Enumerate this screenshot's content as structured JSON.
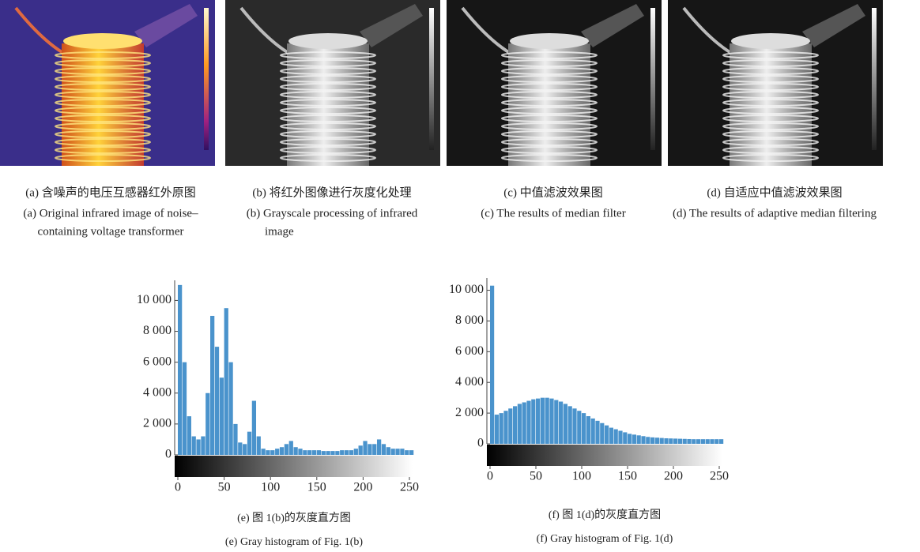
{
  "panels": [
    {
      "caption_cn": "(a) 含噪声的电压互感器红外原图",
      "caption_en": [
        "(a) Original infrared image of noise–",
        "containing voltage transformer"
      ]
    },
    {
      "caption_cn": "(b) 将红外图像进行灰度化处理",
      "caption_en": [
        "(b) Grayscale processing of infrared",
        "image"
      ]
    },
    {
      "caption_cn": "(c) 中值滤波效果图",
      "caption_en": [
        "(c) The results of median filter"
      ]
    },
    {
      "caption_cn": "(d) 自适应中值滤波效果图",
      "caption_en": [
        "(d) The results of adaptive median filtering"
      ]
    }
  ],
  "chart_data": [
    {
      "type": "histogram",
      "title": "(e) 图 1(b)的灰度直方图",
      "subtitle": "(e) Gray histogram of Fig. 1(b)",
      "color": "#4a93cc",
      "bins": [
        0,
        5,
        10,
        15,
        20,
        25,
        30,
        35,
        40,
        45,
        50,
        55,
        60,
        65,
        70,
        75,
        80,
        85,
        90,
        95,
        100,
        105,
        110,
        115,
        120,
        125,
        130,
        135,
        140,
        145,
        150,
        155,
        160,
        165,
        170,
        175,
        180,
        185,
        190,
        195,
        200,
        205,
        210,
        215,
        220,
        225,
        230,
        235,
        240,
        245,
        250,
        255
      ],
      "counts": [
        11000,
        6000,
        2500,
        1200,
        1000,
        1200,
        4000,
        9000,
        7000,
        5000,
        9500,
        6000,
        2000,
        800,
        700,
        1500,
        3500,
        1200,
        400,
        300,
        300,
        400,
        500,
        700,
        900,
        500,
        400,
        300,
        300,
        300,
        300,
        250,
        250,
        250,
        250,
        300,
        300,
        300,
        400,
        600,
        900,
        700,
        700,
        1000,
        700,
        500,
        400,
        400,
        400,
        300,
        300
      ],
      "xlim": [
        0,
        255
      ],
      "xticks": [
        0,
        50,
        100,
        150,
        200,
        250
      ],
      "ylim": [
        0,
        11300
      ],
      "yticks": [
        0,
        {
          "value": 2000,
          "label": "2 000"
        },
        {
          "value": 4000,
          "label": "4 000"
        },
        {
          "value": 6000,
          "label": "6 000"
        },
        {
          "value": 8000,
          "label": "8 000"
        },
        {
          "value": 10000,
          "label": "10 000"
        }
      ]
    },
    {
      "type": "histogram",
      "title": "(f) 图 1(d)的灰度直方图",
      "subtitle": "(f) Gray histogram of Fig. 1(d)",
      "color": "#4a93cc",
      "bins": [
        0,
        5,
        10,
        15,
        20,
        25,
        30,
        35,
        40,
        45,
        50,
        55,
        60,
        65,
        70,
        75,
        80,
        85,
        90,
        95,
        100,
        105,
        110,
        115,
        120,
        125,
        130,
        135,
        140,
        145,
        150,
        155,
        160,
        165,
        170,
        175,
        180,
        185,
        190,
        195,
        200,
        205,
        210,
        215,
        220,
        225,
        230,
        235,
        240,
        245,
        250,
        255
      ],
      "counts": [
        10300,
        1900,
        2000,
        2150,
        2300,
        2450,
        2600,
        2700,
        2800,
        2900,
        2950,
        3000,
        3000,
        2950,
        2850,
        2750,
        2600,
        2450,
        2300,
        2150,
        2000,
        1800,
        1650,
        1500,
        1350,
        1200,
        1050,
        950,
        850,
        750,
        650,
        600,
        550,
        500,
        450,
        420,
        400,
        380,
        360,
        350,
        340,
        330,
        320,
        310,
        300,
        300,
        300,
        300,
        300,
        300,
        300
      ],
      "xlim": [
        0,
        255
      ],
      "xticks": [
        0,
        50,
        100,
        150,
        200,
        250
      ],
      "ylim": [
        0,
        10800
      ],
      "yticks": [
        0,
        {
          "value": 2000,
          "label": "2 000"
        },
        {
          "value": 4000,
          "label": "4 000"
        },
        {
          "value": 6000,
          "label": "6 000"
        },
        {
          "value": 8000,
          "label": "8 000"
        },
        {
          "value": 10000,
          "label": "10 000"
        }
      ]
    }
  ]
}
